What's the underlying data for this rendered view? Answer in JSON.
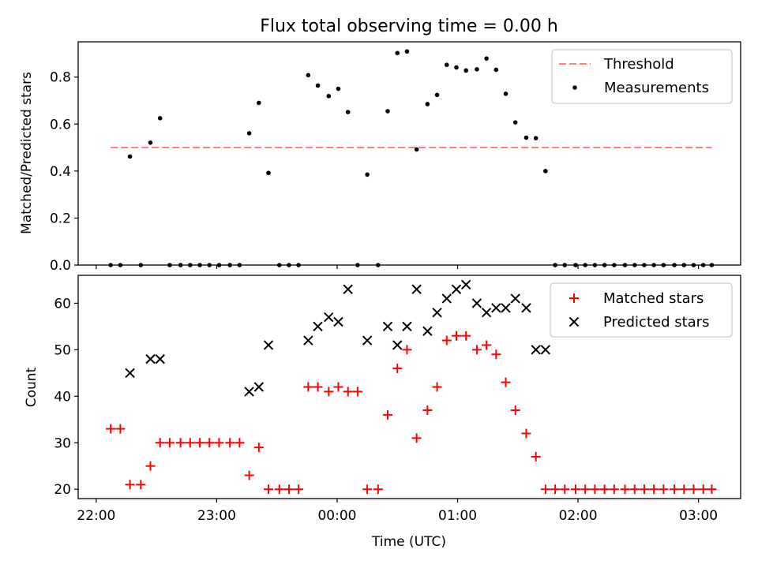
{
  "chart_data": [
    {
      "type": "scatter",
      "title": "Flux total observing time = 0.00 h",
      "xlabel": "",
      "ylabel": "Matched/Predicted stars",
      "xlim_hours": [
        -0.15,
        5.35
      ],
      "ylim": [
        0,
        0.95
      ],
      "yticks": [
        0.0,
        0.2,
        0.4,
        0.6,
        0.8
      ],
      "ytick_labels": [
        "0.0",
        "0.2",
        "0.4",
        "0.6",
        "0.8"
      ],
      "threshold": {
        "name": "Threshold",
        "value": 0.5,
        "x_range_hours": [
          0.12,
          5.11
        ],
        "color": "#ff7f7f"
      },
      "measurements_name": "Measurements",
      "measurements_color": "#000000",
      "measurements": [
        {
          "x": 0.12,
          "y": 0.0
        },
        {
          "x": 0.2,
          "y": 0.0
        },
        {
          "x": 0.28,
          "y": 0.462
        },
        {
          "x": 0.37,
          "y": 0.0
        },
        {
          "x": 0.45,
          "y": 0.521
        },
        {
          "x": 0.53,
          "y": 0.625
        },
        {
          "x": 0.61,
          "y": 0.0
        },
        {
          "x": 0.7,
          "y": 0.0
        },
        {
          "x": 0.78,
          "y": 0.0
        },
        {
          "x": 0.86,
          "y": 0.0
        },
        {
          "x": 0.94,
          "y": 0.0
        },
        {
          "x": 1.02,
          "y": 0.0
        },
        {
          "x": 1.11,
          "y": 0.0
        },
        {
          "x": 1.19,
          "y": 0.0
        },
        {
          "x": 1.27,
          "y": 0.561
        },
        {
          "x": 1.35,
          "y": 0.69
        },
        {
          "x": 1.43,
          "y": 0.392
        },
        {
          "x": 1.52,
          "y": 0.0
        },
        {
          "x": 1.6,
          "y": 0.0
        },
        {
          "x": 1.68,
          "y": 0.0
        },
        {
          "x": 1.76,
          "y": 0.808
        },
        {
          "x": 1.84,
          "y": 0.764
        },
        {
          "x": 1.93,
          "y": 0.719
        },
        {
          "x": 2.01,
          "y": 0.75
        },
        {
          "x": 2.09,
          "y": 0.651
        },
        {
          "x": 2.17,
          "y": 0.0
        },
        {
          "x": 2.25,
          "y": 0.385
        },
        {
          "x": 2.34,
          "y": 0.0
        },
        {
          "x": 2.42,
          "y": 0.655
        },
        {
          "x": 2.5,
          "y": 0.902
        },
        {
          "x": 2.58,
          "y": 0.909
        },
        {
          "x": 2.66,
          "y": 0.492
        },
        {
          "x": 2.75,
          "y": 0.685
        },
        {
          "x": 2.83,
          "y": 0.724
        },
        {
          "x": 2.91,
          "y": 0.852
        },
        {
          "x": 2.99,
          "y": 0.841
        },
        {
          "x": 3.07,
          "y": 0.828
        },
        {
          "x": 3.16,
          "y": 0.833
        },
        {
          "x": 3.24,
          "y": 0.879
        },
        {
          "x": 3.32,
          "y": 0.831
        },
        {
          "x": 3.4,
          "y": 0.729
        },
        {
          "x": 3.48,
          "y": 0.607
        },
        {
          "x": 3.57,
          "y": 0.542
        },
        {
          "x": 3.65,
          "y": 0.54
        },
        {
          "x": 3.73,
          "y": 0.4
        },
        {
          "x": 3.81,
          "y": 0.0
        },
        {
          "x": 3.89,
          "y": 0.0
        },
        {
          "x": 3.98,
          "y": 0.0
        },
        {
          "x": 4.06,
          "y": 0.0
        },
        {
          "x": 4.14,
          "y": 0.0
        },
        {
          "x": 4.22,
          "y": 0.0
        },
        {
          "x": 4.3,
          "y": 0.0
        },
        {
          "x": 4.39,
          "y": 0.0
        },
        {
          "x": 4.47,
          "y": 0.0
        },
        {
          "x": 4.55,
          "y": 0.0
        },
        {
          "x": 4.63,
          "y": 0.0
        },
        {
          "x": 4.71,
          "y": 0.0
        },
        {
          "x": 4.8,
          "y": 0.0
        },
        {
          "x": 4.88,
          "y": 0.0
        },
        {
          "x": 4.96,
          "y": 0.0
        },
        {
          "x": 5.04,
          "y": 0.0
        },
        {
          "x": 5.11,
          "y": 0.0
        }
      ],
      "legend": {
        "placement": "upper right",
        "entries": [
          "Threshold",
          "Measurements"
        ]
      }
    },
    {
      "type": "scatter",
      "title": "",
      "xlabel": "Time (UTC)",
      "ylabel": "Count",
      "xlim_hours": [
        -0.15,
        5.35
      ],
      "ylim": [
        18,
        66
      ],
      "yticks": [
        20,
        30,
        40,
        50,
        60
      ],
      "ytick_labels": [
        "20",
        "30",
        "40",
        "50",
        "60"
      ],
      "xticks_hours": [
        0,
        1,
        2,
        3,
        4,
        5
      ],
      "xtick_labels": [
        "22:00",
        "23:00",
        "00:00",
        "01:00",
        "02:00",
        "03:00"
      ],
      "series": [
        {
          "name": "Matched stars",
          "marker": "+",
          "color": "#ff0000",
          "points": [
            {
              "x": 0.12,
              "y": 33
            },
            {
              "x": 0.2,
              "y": 33
            },
            {
              "x": 0.28,
              "y": 21
            },
            {
              "x": 0.37,
              "y": 21
            },
            {
              "x": 0.45,
              "y": 25
            },
            {
              "x": 0.53,
              "y": 30
            },
            {
              "x": 0.61,
              "y": 30
            },
            {
              "x": 0.7,
              "y": 30
            },
            {
              "x": 0.78,
              "y": 30
            },
            {
              "x": 0.86,
              "y": 30
            },
            {
              "x": 0.94,
              "y": 30
            },
            {
              "x": 1.02,
              "y": 30
            },
            {
              "x": 1.11,
              "y": 30
            },
            {
              "x": 1.19,
              "y": 30
            },
            {
              "x": 1.27,
              "y": 23
            },
            {
              "x": 1.35,
              "y": 29
            },
            {
              "x": 1.43,
              "y": 20
            },
            {
              "x": 1.52,
              "y": 20
            },
            {
              "x": 1.6,
              "y": 20
            },
            {
              "x": 1.68,
              "y": 20
            },
            {
              "x": 1.76,
              "y": 42
            },
            {
              "x": 1.84,
              "y": 42
            },
            {
              "x": 1.93,
              "y": 41
            },
            {
              "x": 2.01,
              "y": 42
            },
            {
              "x": 2.09,
              "y": 41
            },
            {
              "x": 2.17,
              "y": 41
            },
            {
              "x": 2.25,
              "y": 20
            },
            {
              "x": 2.34,
              "y": 20
            },
            {
              "x": 2.42,
              "y": 36
            },
            {
              "x": 2.5,
              "y": 46
            },
            {
              "x": 2.58,
              "y": 50
            },
            {
              "x": 2.66,
              "y": 31
            },
            {
              "x": 2.75,
              "y": 37
            },
            {
              "x": 2.83,
              "y": 42
            },
            {
              "x": 2.91,
              "y": 52
            },
            {
              "x": 2.99,
              "y": 53
            },
            {
              "x": 3.07,
              "y": 53
            },
            {
              "x": 3.16,
              "y": 50
            },
            {
              "x": 3.24,
              "y": 51
            },
            {
              "x": 3.32,
              "y": 49
            },
            {
              "x": 3.4,
              "y": 43
            },
            {
              "x": 3.48,
              "y": 37
            },
            {
              "x": 3.57,
              "y": 32
            },
            {
              "x": 3.65,
              "y": 27
            },
            {
              "x": 3.73,
              "y": 20
            },
            {
              "x": 3.81,
              "y": 20
            },
            {
              "x": 3.89,
              "y": 20
            },
            {
              "x": 3.98,
              "y": 20
            },
            {
              "x": 4.06,
              "y": 20
            },
            {
              "x": 4.14,
              "y": 20
            },
            {
              "x": 4.22,
              "y": 20
            },
            {
              "x": 4.3,
              "y": 20
            },
            {
              "x": 4.39,
              "y": 20
            },
            {
              "x": 4.47,
              "y": 20
            },
            {
              "x": 4.55,
              "y": 20
            },
            {
              "x": 4.63,
              "y": 20
            },
            {
              "x": 4.71,
              "y": 20
            },
            {
              "x": 4.8,
              "y": 20
            },
            {
              "x": 4.88,
              "y": 20
            },
            {
              "x": 4.96,
              "y": 20
            },
            {
              "x": 5.04,
              "y": 20
            },
            {
              "x": 5.11,
              "y": 20
            }
          ]
        },
        {
          "name": "Predicted stars",
          "marker": "x",
          "color": "#000000",
          "points": [
            {
              "x": 0.28,
              "y": 45
            },
            {
              "x": 0.45,
              "y": 48
            },
            {
              "x": 0.53,
              "y": 48
            },
            {
              "x": 1.27,
              "y": 41
            },
            {
              "x": 1.35,
              "y": 42
            },
            {
              "x": 1.43,
              "y": 51
            },
            {
              "x": 1.76,
              "y": 52
            },
            {
              "x": 1.84,
              "y": 55
            },
            {
              "x": 1.93,
              "y": 57
            },
            {
              "x": 2.01,
              "y": 56
            },
            {
              "x": 2.09,
              "y": 63
            },
            {
              "x": 2.25,
              "y": 52
            },
            {
              "x": 2.42,
              "y": 55
            },
            {
              "x": 2.5,
              "y": 51
            },
            {
              "x": 2.58,
              "y": 55
            },
            {
              "x": 2.66,
              "y": 63
            },
            {
              "x": 2.75,
              "y": 54
            },
            {
              "x": 2.83,
              "y": 58
            },
            {
              "x": 2.91,
              "y": 61
            },
            {
              "x": 2.99,
              "y": 63
            },
            {
              "x": 3.07,
              "y": 64
            },
            {
              "x": 3.16,
              "y": 60
            },
            {
              "x": 3.24,
              "y": 58
            },
            {
              "x": 3.32,
              "y": 59
            },
            {
              "x": 3.4,
              "y": 59
            },
            {
              "x": 3.48,
              "y": 61
            },
            {
              "x": 3.57,
              "y": 59
            },
            {
              "x": 3.65,
              "y": 50
            },
            {
              "x": 3.73,
              "y": 50
            }
          ]
        }
      ],
      "legend": {
        "placement": "upper right",
        "entries": [
          "Matched stars",
          "Predicted stars"
        ]
      }
    }
  ]
}
